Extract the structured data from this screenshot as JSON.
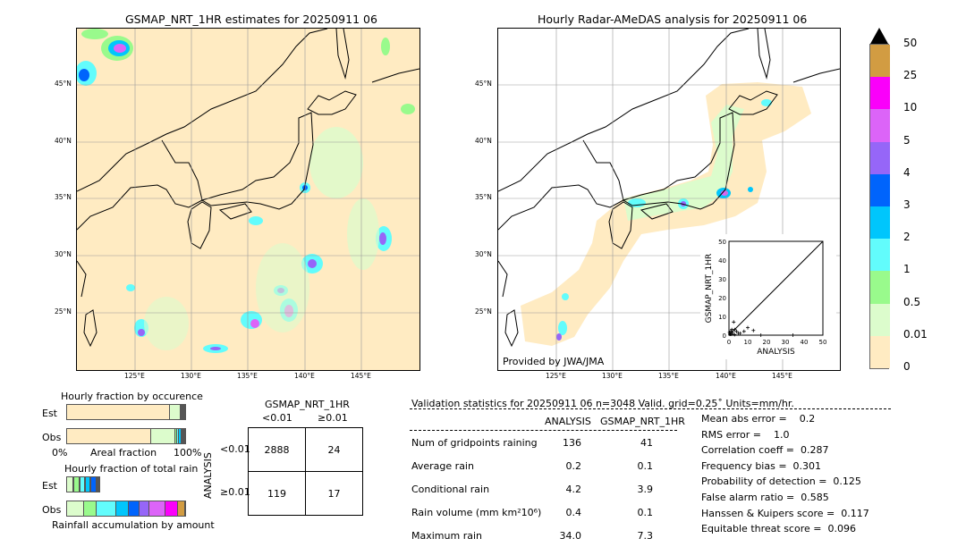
{
  "left_map": {
    "title": "GSMAP_NRT_1HR estimates for 20250911 06",
    "lon_ticks": [
      "125°E",
      "130°E",
      "135°E",
      "140°E",
      "145°E"
    ],
    "lat_ticks": [
      "45°N",
      "40°N",
      "35°N",
      "30°N",
      "25°N"
    ]
  },
  "right_map": {
    "title": "Hourly Radar-AMeDAS analysis for 20250911 06",
    "lon_ticks": [
      "125°E",
      "130°E",
      "135°E",
      "140°E",
      "145°E"
    ],
    "lat_ticks": [
      "45°N",
      "40°N",
      "35°N",
      "30°N",
      "25°N"
    ],
    "credit": "Provided by JWA/JMA"
  },
  "scatter_inset": {
    "xlabel": "ANALYSIS",
    "ylabel": "GSMAP_NRT_1HR",
    "ticks": [
      "0",
      "10",
      "20",
      "30",
      "40",
      "50"
    ],
    "points": [
      [
        0.5,
        0.5
      ],
      [
        1,
        2
      ],
      [
        1.5,
        3
      ],
      [
        2,
        1
      ],
      [
        2.5,
        7
      ],
      [
        3,
        3
      ],
      [
        4,
        2
      ],
      [
        5,
        1
      ],
      [
        6,
        1
      ],
      [
        8,
        2
      ],
      [
        10,
        4
      ],
      [
        13,
        2.5
      ],
      [
        17,
        0
      ],
      [
        34,
        0
      ],
      [
        0.3,
        1.5
      ],
      [
        1,
        0.5
      ],
      [
        3,
        0.3
      ]
    ]
  },
  "colorbar": {
    "labels": [
      "0",
      "0.01",
      "0.5",
      "1",
      "2",
      "3",
      "4",
      "5",
      "10",
      "25",
      "50"
    ],
    "colors": [
      "#ffebc2",
      "#dcfccc",
      "#99fa8c",
      "#62fcfc",
      "#00c6fc",
      "#0064fc",
      "#9666f8",
      "#dc64f8",
      "#fa00fa",
      "#d29c42"
    ],
    "extend_color": "#000000"
  },
  "occurrence": {
    "title": "Hourly fraction by occurence",
    "est_label": "Est",
    "obs_label": "Obs",
    "xlabel": "Areal fraction",
    "x_min": "0%",
    "x_max": "100%",
    "est_fractions": [
      0.88,
      0.09,
      0.01,
      0.005,
      0.005,
      0.005,
      0.005
    ],
    "obs_fractions": [
      0.72,
      0.2,
      0.02,
      0.015,
      0.02,
      0.01,
      0.005,
      0.005,
      0.005
    ]
  },
  "total_rain": {
    "title": "Hourly fraction of total rain",
    "est_label": "Est",
    "obs_label": "Obs",
    "xlabel": "Rainfall accumulation by amount",
    "est_fractions": [
      0.06,
      0.05,
      0.048,
      0.045,
      0.048,
      0.02,
      0.012
    ],
    "obs_fractions": [
      0.145,
      0.105,
      0.165,
      0.105,
      0.095,
      0.085,
      0.135,
      0.105,
      0.06
    ]
  },
  "contingency": {
    "title": "GSMAP_NRT_1HR",
    "col_labels": [
      "<0.01",
      "≥0.01"
    ],
    "row_axis": "ANALYSIS",
    "row_labels": [
      "<0.01",
      "≥0.01"
    ],
    "cells": [
      [
        "2888",
        "24"
      ],
      [
        "119",
        "17"
      ]
    ]
  },
  "validation": {
    "header": "Validation statistics for 20250911 06  n=3048 Valid. grid=0.25˚ Units=mm/hr.",
    "col_analysis": "ANALYSIS",
    "col_gsmap": "GSMAP_NRT_1HR",
    "rows": [
      {
        "label": "Num of gridpoints raining",
        "analysis": "136",
        "gsmap": "41"
      },
      {
        "label": "Average rain",
        "analysis": "0.2",
        "gsmap": "0.1"
      },
      {
        "label": "Conditional rain",
        "analysis": "4.2",
        "gsmap": "3.9"
      },
      {
        "label": "Rain volume (mm km²10⁶)",
        "analysis": "0.4",
        "gsmap": "0.1"
      },
      {
        "label": "Maximum rain",
        "analysis": "34.0",
        "gsmap": "7.3"
      }
    ],
    "scores": [
      "Mean abs error =    0.2",
      "RMS error =    1.0",
      "Correlation coeff =  0.287",
      "Frequency bias =  0.301",
      "Probability of detection =  0.125",
      "False alarm ratio =  0.585",
      "Hanssen & Kuipers score =  0.117",
      "Equitable threat score =  0.096"
    ]
  }
}
